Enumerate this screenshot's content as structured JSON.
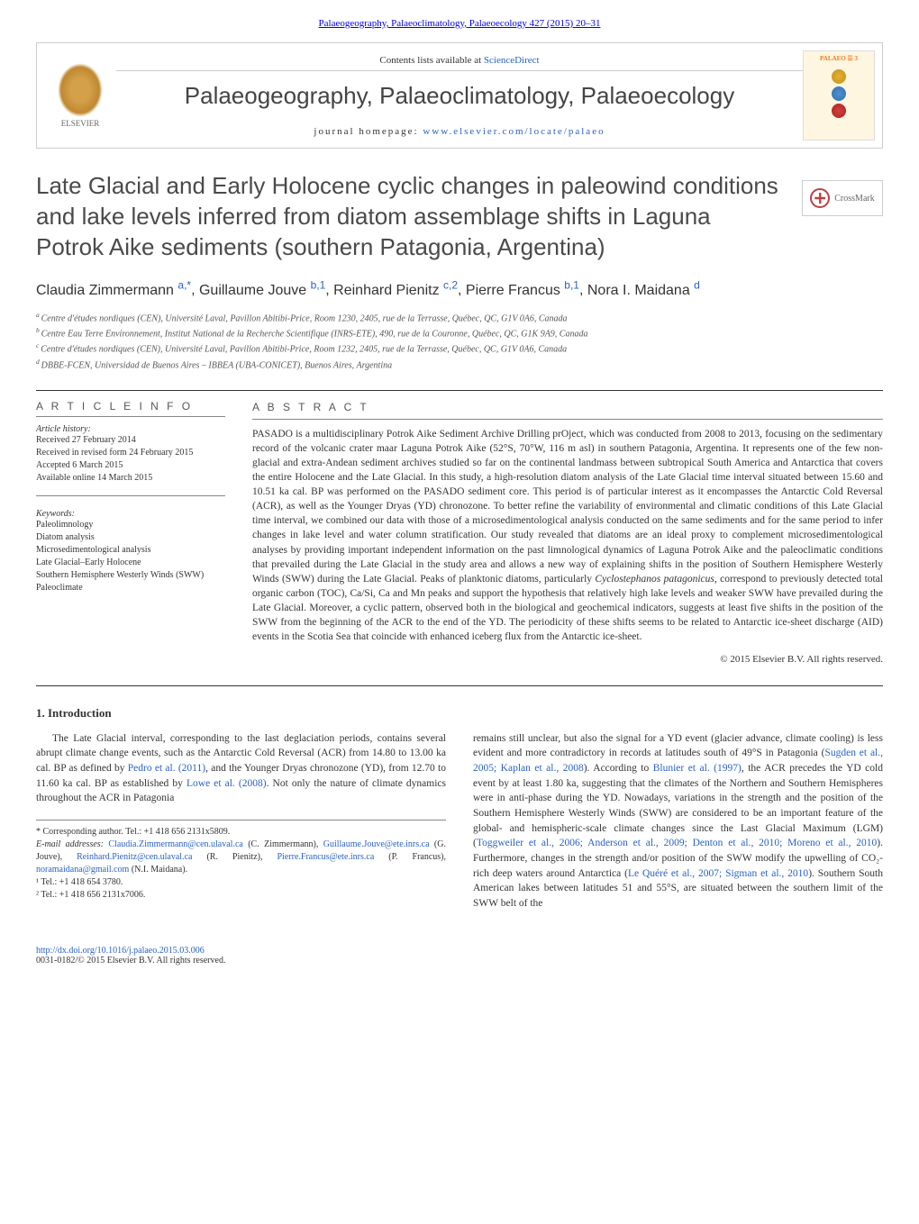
{
  "citation": "Palaeogeography, Palaeoclimatology, Palaeoecology 427 (2015) 20–31",
  "contentsText": "Contents lists available at ",
  "contentsLink": "ScienceDirect",
  "journalName": "Palaeogeography, Palaeoclimatology, Palaeoecology",
  "homepageLabel": "journal homepage: ",
  "homepageUrl": "www.elsevier.com/locate/palaeo",
  "publisherName": "ELSEVIER",
  "coverBadge": "PALAEO ☰ 3",
  "crossmark": "CrossMark",
  "title": "Late Glacial and Early Holocene cyclic changes in paleowind conditions and lake levels inferred from diatom assemblage shifts in Laguna Potrok Aike sediments (southern Patagonia, Argentina)",
  "authors": [
    {
      "name": "Claudia Zimmermann",
      "aff": "a,",
      "mark": "*"
    },
    {
      "name": "Guillaume Jouve",
      "aff": "b,1"
    },
    {
      "name": "Reinhard Pienitz",
      "aff": "c,2"
    },
    {
      "name": "Pierre Francus",
      "aff": "b,1"
    },
    {
      "name": "Nora I. Maidana",
      "aff": "d"
    }
  ],
  "affiliations": [
    {
      "sup": "a",
      "text": "Centre d'études nordiques (CEN), Université Laval, Pavillon Abitibi-Price, Room 1230, 2405, rue de la Terrasse, Québec, QC, G1V 0A6, Canada"
    },
    {
      "sup": "b",
      "text": "Centre Eau Terre Environnement, Institut National de la Recherche Scientifique (INRS-ETE), 490, rue de la Couronne, Québec, QC, G1K 9A9, Canada"
    },
    {
      "sup": "c",
      "text": "Centre d'études nordiques (CEN), Université Laval, Pavillon Abitibi-Price, Room 1232, 2405, rue de la Terrasse, Québec, QC, G1V 0A6, Canada"
    },
    {
      "sup": "d",
      "text": "DBBE-FCEN, Universidad de Buenos Aires – IBBEA (UBA-CONICET), Buenos Aires, Argentina"
    }
  ],
  "articleInfoHeader": "A R T I C L E   I N F O",
  "historyLabel": "Article history:",
  "history": [
    "Received 27 February 2014",
    "Received in revised form 24 February 2015",
    "Accepted 6 March 2015",
    "Available online 14 March 2015"
  ],
  "keywordsLabel": "Keywords:",
  "keywords": [
    "Paleolimnology",
    "Diatom analysis",
    "Microsedimentological analysis",
    "Late Glacial–Early Holocene",
    "Southern Hemisphere Westerly Winds (SWW)",
    "Paleoclimate"
  ],
  "abstractHeader": "A B S T R A C T",
  "abstractText": "PASADO is a multidisciplinary Potrok Aike Sediment Archive Drilling prOject, which was conducted from 2008 to 2013, focusing on the sedimentary record of the volcanic crater maar Laguna Potrok Aike (52°S, 70°W, 116 m asl) in southern Patagonia, Argentina. It represents one of the few non-glacial and extra-Andean sediment archives studied so far on the continental landmass between subtropical South America and Antarctica that covers the entire Holocene and the Late Glacial. In this study, a high-resolution diatom analysis of the Late Glacial time interval situated between 15.60 and 10.51 ka cal. BP was performed on the PASADO sediment core. This period is of particular interest as it encompasses the Antarctic Cold Reversal (ACR), as well as the Younger Dryas (YD) chronozone. To better refine the variability of environmental and climatic conditions of this Late Glacial time interval, we combined our data with those of a microsedimentological analysis conducted on the same sediments and for the same period to infer changes in lake level and water column stratification. Our study revealed that diatoms are an ideal proxy to complement microsedimentological analyses by providing important independent information on the past limnological dynamics of Laguna Potrok Aike and the paleoclimatic conditions that prevailed during the Late Glacial in the study area and allows a new way of explaining shifts in the position of Southern Hemisphere Westerly Winds (SWW) during the Late Glacial. Peaks of planktonic diatoms, particularly Cyclostephanos patagonicus, correspond to previously detected total organic carbon (TOC), Ca/Si, Ca and Mn peaks and support the hypothesis that relatively high lake levels and weaker SWW have prevailed during the Late Glacial. Moreover, a cyclic pattern, observed both in the biological and geochemical indicators, suggests at least five shifts in the position of the SWW from the beginning of the ACR to the end of the YD. The periodicity of these shifts seems to be related to Antarctic ice-sheet discharge (AID) events in the Scotia Sea that coincide with enhanced iceberg flux from the Antarctic ice-sheet.",
  "copyright": "© 2015 Elsevier B.V. All rights reserved.",
  "section1Title": "1. Introduction",
  "col1": {
    "p1a": "The Late Glacial interval, corresponding to the last deglaciation periods, contains several abrupt climate change events, such as the Antarctic Cold Reversal (ACR) from 14.80 to 13.00 ka cal. BP as defined by ",
    "p1link1": "Pedro et al. (2011)",
    "p1b": ", and the Younger Dryas chronozone (YD), from 12.70 to 11.60 ka cal. BP as established by ",
    "p1link2": "Lowe et al. (2008)",
    "p1c": ". Not only the nature of climate dynamics throughout the ACR in Patagonia"
  },
  "col2": {
    "p1a": "remains still unclear, but also the signal for a YD event (glacier advance, climate cooling) is less evident and more contradictory in records at latitudes south of 49°S in Patagonia (",
    "p1link1": "Sugden et al., 2005; Kaplan et al., 2008",
    "p1b": "). According to ",
    "p1link2": "Blunier et al. (1997)",
    "p1c": ", the ACR precedes the YD cold event by at least 1.80 ka, suggesting that the climates of the Northern and Southern Hemispheres were in anti-phase during the YD. Nowadays, variations in the strength and the position of the Southern Hemisphere Westerly Winds (SWW) are considered to be an important feature of the global- and hemispheric-scale climate changes since the Last Glacial Maximum (LGM) (",
    "p1link3": "Toggweiler et al., 2006; Anderson et al., 2009; Denton et al., 2010; Moreno et al., 2010",
    "p1d": "). Furthermore, changes in the strength and/or position of the SWW modify the upwelling of CO₂-rich deep waters around Antarctica (",
    "p1link4": "Le Quéré et al., 2007; Sigman et al., 2010",
    "p1e": "). Southern South American lakes between latitudes 51 and 55°S, are situated between the southern limit of the SWW belt of the"
  },
  "footnotes": {
    "corrLabel": "* Corresponding author. Tel.: +1 418 656 2131x5809.",
    "emailLabel": "E-mail addresses: ",
    "emails": [
      {
        "addr": "Claudia.Zimmermann@cen.ulaval.ca",
        "who": " (C. Zimmermann), "
      },
      {
        "addr": "Guillaume.Jouve@ete.inrs.ca",
        "who": " (G. Jouve), "
      },
      {
        "addr": "Reinhard.Pienitz@cen.ulaval.ca",
        "who": " (R. Pienitz), "
      },
      {
        "addr": "Pierre.Francus@ete.inrs.ca",
        "who": " (P. Francus), "
      },
      {
        "addr": "noramaidana@gmail.com",
        "who": " (N.I. Maidana)."
      }
    ],
    "tel1": "¹ Tel.: +1 418 654 3780.",
    "tel2": "² Tel.: +1 418 656 2131x7006."
  },
  "footer": {
    "doi": "http://dx.doi.org/10.1016/j.palaeo.2015.03.006",
    "copyline": "0031-0182/© 2015 Elsevier B.V. All rights reserved."
  }
}
